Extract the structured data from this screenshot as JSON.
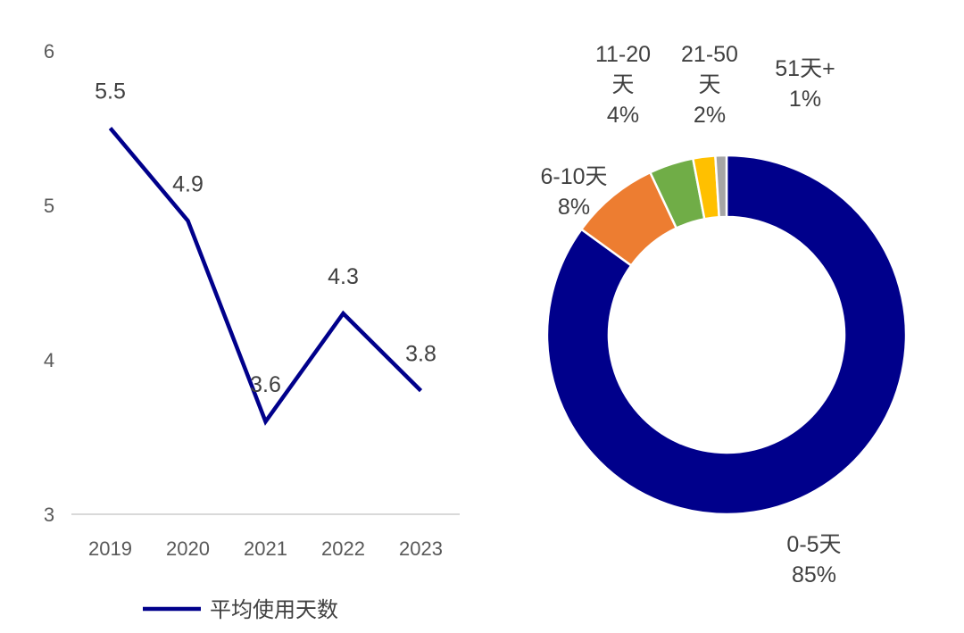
{
  "chart_data": [
    {
      "type": "line",
      "categories": [
        "2019",
        "2020",
        "2021",
        "2022",
        "2023"
      ],
      "series": [
        {
          "name": "平均使用天数",
          "values": [
            5.5,
            4.9,
            3.6,
            4.3,
            3.8
          ],
          "color": "#00008B"
        }
      ],
      "data_labels": [
        "5.5",
        "4.9",
        "3.6",
        "4.3",
        "3.8"
      ],
      "yticks": [
        "3",
        "4",
        "5",
        "6"
      ],
      "ylim": [
        3,
        6
      ],
      "grid": false,
      "legend": "bottom"
    },
    {
      "type": "pie",
      "donut": true,
      "slices": [
        {
          "label_lines": [
            "0-5天",
            "85%"
          ],
          "value": 85,
          "color": "#00008B"
        },
        {
          "label_lines": [
            "6-10天",
            "8%"
          ],
          "value": 8,
          "color": "#ED7D31"
        },
        {
          "label_lines": [
            "11-20",
            "天",
            "4%"
          ],
          "value": 4,
          "color": "#70AD47"
        },
        {
          "label_lines": [
            "21-50",
            "天",
            "2%"
          ],
          "value": 2,
          "color": "#FFC000"
        },
        {
          "label_lines": [
            "51天+",
            "1%"
          ],
          "value": 1,
          "color": "#A5A5A5"
        }
      ]
    }
  ]
}
